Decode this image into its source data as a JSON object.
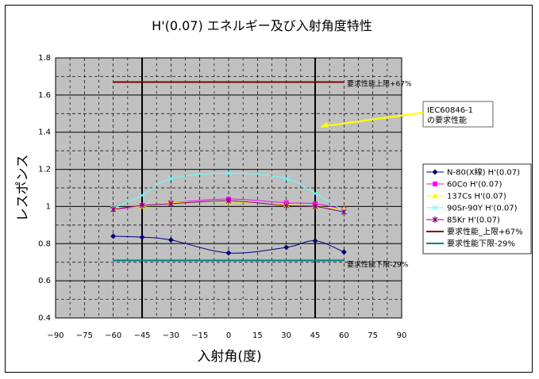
{
  "chart_data": {
    "type": "line",
    "title": "H'(0.07) エネルギー及び入射角度特性",
    "xlabel": "入射角(度)",
    "ylabel": "レスポンス",
    "xlim": [
      -90,
      90
    ],
    "ylim": [
      0.4,
      1.8
    ],
    "x_ticks": [
      -90,
      -75,
      -60,
      -45,
      -30,
      -15,
      0,
      15,
      30,
      45,
      60,
      75,
      90
    ],
    "y_ticks": [
      0.4,
      0.6,
      0.8,
      1,
      1.2,
      1.4,
      1.6,
      1.8
    ],
    "x_tick_labels": [
      "−90",
      "−75",
      "−60",
      "−45",
      "−30",
      "−15",
      "0",
      "15",
      "30",
      "45",
      "60",
      "75",
      "90"
    ],
    "y_tick_labels": [
      "0.4",
      "0.6",
      "0.8",
      "1",
      "1.2",
      "1.4",
      "1.6",
      "1.8"
    ],
    "vertical_lines": [
      -45,
      45
    ],
    "grid": true,
    "legend_position": "right",
    "series": [
      {
        "name": "N-80(X線) H'(0.07)",
        "color": "#000080",
        "marker": "diamond",
        "x": [
          -60,
          -45,
          -30,
          0,
          30,
          45,
          60
        ],
        "y": [
          0.84,
          0.835,
          0.82,
          0.75,
          0.78,
          0.815,
          0.755
        ]
      },
      {
        "name": "60Co H'(0.07)",
        "color": "#ff00ff",
        "marker": "square",
        "x": [
          -60,
          -45,
          -30,
          0,
          30,
          45,
          60
        ],
        "y": [
          0.985,
          1.0,
          1.02,
          1.04,
          1.02,
          1.015,
          0.985
        ]
      },
      {
        "name": "137Cs H'(0.07)",
        "color": "#ffff00",
        "marker": "triangle",
        "x": [
          -60,
          -45,
          -30,
          0,
          30,
          45,
          60
        ],
        "y": [
          0.99,
          1.0,
          1.02,
          1.025,
          1.01,
          1.0,
          0.985
        ]
      },
      {
        "name": "90Sr-90Y H'(0.07)",
        "color": "#66ffff",
        "marker": "x",
        "x": [
          -60,
          -45,
          -30,
          0,
          30,
          45,
          60
        ],
        "y": [
          0.99,
          1.06,
          1.15,
          1.18,
          1.15,
          1.07,
          0.975
        ]
      },
      {
        "name": "85Kr H'(0.07)",
        "color": "#800080",
        "marker": "star",
        "x": [
          -60,
          -45,
          -30,
          0,
          30,
          45,
          60
        ],
        "y": [
          0.985,
          1.005,
          1.015,
          1.03,
          1.005,
          1.0,
          0.97
        ]
      },
      {
        "name": "要求性能_上限+67%",
        "color": "#800000",
        "marker": "none",
        "x": [
          -60,
          60
        ],
        "y": [
          1.67,
          1.67
        ]
      },
      {
        "name": "要求性能下限-29%",
        "color": "#008080",
        "marker": "none",
        "x": [
          -60,
          60
        ],
        "y": [
          0.71,
          0.71
        ]
      }
    ],
    "annotations": [
      {
        "text": "要求性能上限+67%",
        "x": 64,
        "y": 1.665
      },
      {
        "text": "要求性能下限-29%",
        "x": 64,
        "y": 0.71
      },
      {
        "text": "IEC60846-1",
        "x": 72,
        "y": 1.505,
        "target_x": 48,
        "target_y": 1.43
      },
      {
        "text": "の要求性能",
        "x": 72,
        "y": 1.46
      }
    ]
  }
}
